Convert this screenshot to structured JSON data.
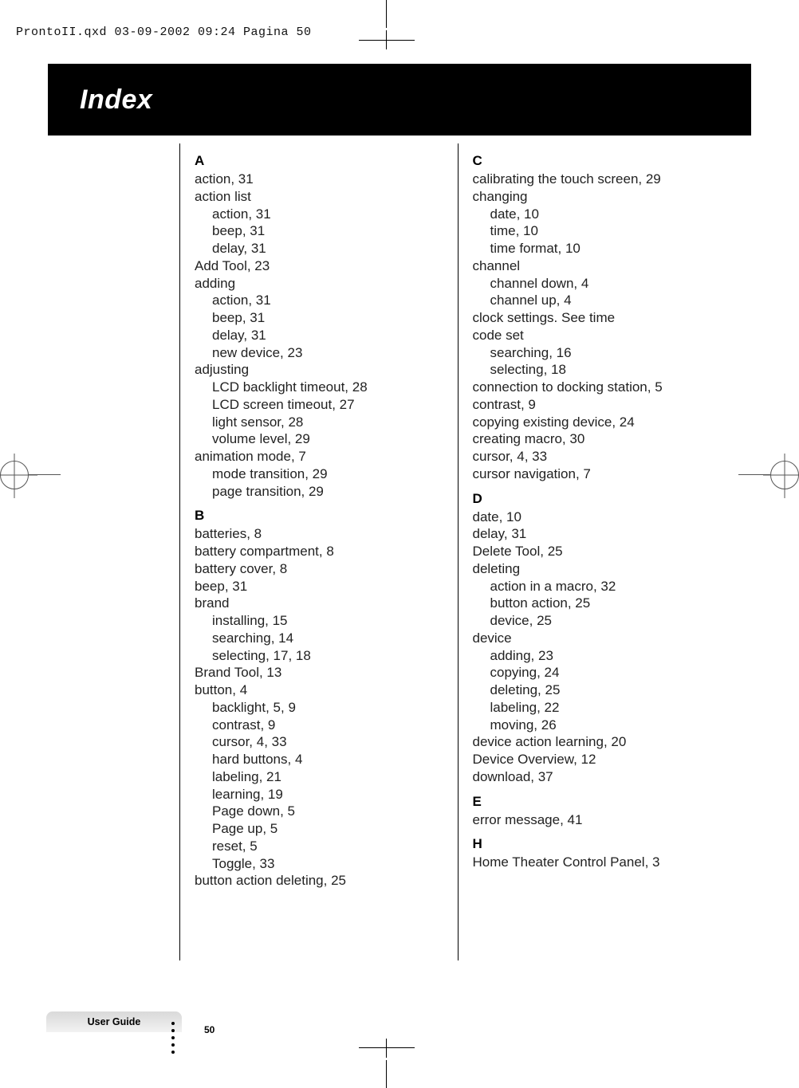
{
  "header_line": "ProntoII.qxd   03-09-2002   09:24   Pagina 50",
  "title": "Index",
  "sections": {
    "A": {
      "head": "A",
      "lines": [
        {
          "t": "action, 31"
        },
        {
          "t": "action list"
        },
        {
          "t": "action, 31",
          "sub": true
        },
        {
          "t": "beep, 31",
          "sub": true
        },
        {
          "t": "delay, 31",
          "sub": true
        },
        {
          "t": "Add Tool, 23"
        },
        {
          "t": "adding"
        },
        {
          "t": "action, 31",
          "sub": true
        },
        {
          "t": "beep, 31",
          "sub": true
        },
        {
          "t": "delay, 31",
          "sub": true
        },
        {
          "t": "new device, 23",
          "sub": true
        },
        {
          "t": "adjusting"
        },
        {
          "t": "LCD backlight timeout, 28",
          "sub": true
        },
        {
          "t": "LCD screen timeout, 27",
          "sub": true
        },
        {
          "t": "light sensor, 28",
          "sub": true
        },
        {
          "t": "volume level, 29",
          "sub": true
        },
        {
          "t": "animation mode, 7"
        },
        {
          "t": "mode transition, 29",
          "sub": true
        },
        {
          "t": "page transition, 29",
          "sub": true
        }
      ]
    },
    "B": {
      "head": "B",
      "lines": [
        {
          "t": "batteries, 8"
        },
        {
          "t": "battery compartment, 8"
        },
        {
          "t": "battery cover, 8"
        },
        {
          "t": "beep, 31"
        },
        {
          "t": "brand"
        },
        {
          "t": "installing, 15",
          "sub": true
        },
        {
          "t": "searching, 14",
          "sub": true
        },
        {
          "t": "selecting, 17, 18",
          "sub": true
        },
        {
          "t": "Brand Tool, 13"
        },
        {
          "t": "button, 4"
        },
        {
          "t": "backlight, 5, 9",
          "sub": true
        },
        {
          "t": "contrast, 9",
          "sub": true
        },
        {
          "t": "cursor, 4, 33",
          "sub": true
        },
        {
          "t": "hard buttons, 4",
          "sub": true
        },
        {
          "t": "labeling, 21",
          "sub": true
        },
        {
          "t": "learning, 19",
          "sub": true
        },
        {
          "t": "Page down, 5",
          "sub": true
        },
        {
          "t": "Page up, 5",
          "sub": true
        },
        {
          "t": "reset, 5",
          "sub": true
        },
        {
          "t": "Toggle, 33",
          "sub": true
        },
        {
          "t": "button action deleting, 25"
        }
      ]
    },
    "C": {
      "head": "C",
      "lines": [
        {
          "t": "calibrating the touch screen, 29"
        },
        {
          "t": "changing"
        },
        {
          "t": "date, 10",
          "sub": true
        },
        {
          "t": "time, 10",
          "sub": true
        },
        {
          "t": "time format, 10",
          "sub": true
        },
        {
          "t": "channel"
        },
        {
          "t": "channel down, 4",
          "sub": true
        },
        {
          "t": "channel up, 4",
          "sub": true
        },
        {
          "t": "clock settings. See time"
        },
        {
          "t": "code set"
        },
        {
          "t": "searching, 16",
          "sub": true
        },
        {
          "t": "selecting, 18",
          "sub": true
        },
        {
          "t": "connection to docking station, 5"
        },
        {
          "t": "contrast, 9"
        },
        {
          "t": "copying existing device, 24"
        },
        {
          "t": "creating macro, 30"
        },
        {
          "t": "cursor, 4, 33"
        },
        {
          "t": "cursor navigation, 7"
        }
      ]
    },
    "D": {
      "head": "D",
      "lines": [
        {
          "t": "date, 10"
        },
        {
          "t": "delay, 31"
        },
        {
          "t": "Delete Tool, 25"
        },
        {
          "t": "deleting"
        },
        {
          "t": "action in a macro, 32",
          "sub": true
        },
        {
          "t": "button action, 25",
          "sub": true
        },
        {
          "t": "device, 25",
          "sub": true
        },
        {
          "t": "device"
        },
        {
          "t": "adding, 23",
          "sub": true
        },
        {
          "t": "copying, 24",
          "sub": true
        },
        {
          "t": "deleting, 25",
          "sub": true
        },
        {
          "t": "labeling, 22",
          "sub": true
        },
        {
          "t": "moving, 26",
          "sub": true
        },
        {
          "t": "device action learning, 20"
        },
        {
          "t": "Device Overview, 12"
        },
        {
          "t": "download, 37"
        }
      ]
    },
    "E": {
      "head": "E",
      "lines": [
        {
          "t": "error message, 41"
        }
      ]
    },
    "H": {
      "head": "H",
      "lines": [
        {
          "t": "Home Theater Control Panel, 3"
        }
      ]
    }
  },
  "left_order": [
    "A",
    "B"
  ],
  "right_order": [
    "C",
    "D",
    "E",
    "H"
  ],
  "footer_label": "User Guide",
  "page_number": "50"
}
